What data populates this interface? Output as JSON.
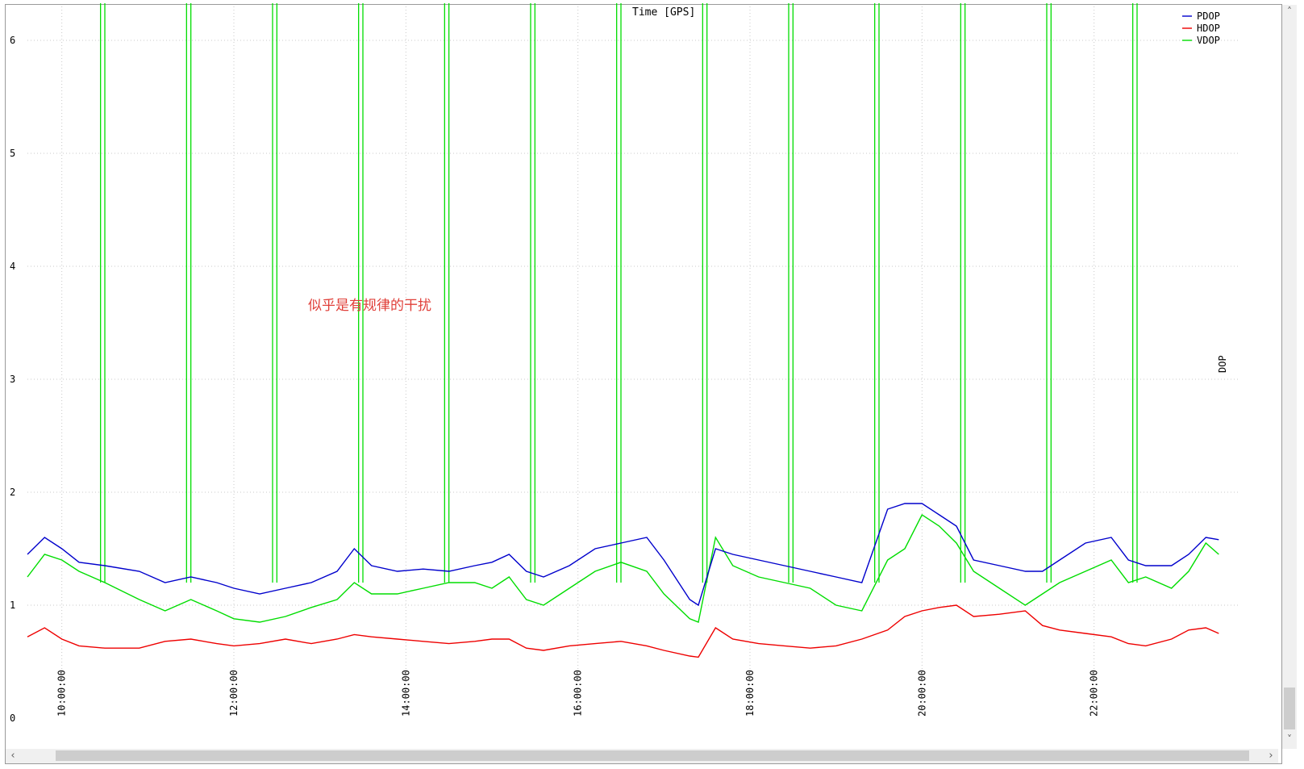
{
  "chart_data": {
    "type": "line",
    "title": "Time [GPS]",
    "ylabel": "DOP",
    "xlabel": "",
    "ylim": [
      0,
      6.3
    ],
    "xlim": [
      9.6,
      23.7
    ],
    "y_ticks": [
      "0",
      "1",
      "2",
      "3",
      "4",
      "5",
      "6"
    ],
    "x_ticks": [
      "10:00:00",
      "12:00:00",
      "14:00:00",
      "16:00:00",
      "18:00:00",
      "20:00:00",
      "22:00:00"
    ],
    "grid": true,
    "legend_position": "top-right",
    "annotation": "似乎是有规律的干扰",
    "series": [
      {
        "name": "PDOP",
        "color": "#0000cc",
        "x": [
          9.6,
          9.8,
          10.0,
          10.2,
          10.5,
          10.9,
          11.2,
          11.5,
          11.8,
          12.0,
          12.3,
          12.6,
          12.9,
          13.2,
          13.4,
          13.6,
          13.9,
          14.2,
          14.5,
          14.8,
          15.0,
          15.2,
          15.4,
          15.6,
          15.9,
          16.2,
          16.5,
          16.8,
          17.0,
          17.3,
          17.4,
          17.6,
          17.8,
          18.1,
          18.4,
          18.7,
          19.0,
          19.3,
          19.6,
          19.8,
          20.0,
          20.2,
          20.4,
          20.6,
          20.9,
          21.2,
          21.4,
          21.6,
          21.9,
          22.2,
          22.4,
          22.6,
          22.9,
          23.1,
          23.3,
          23.45
        ],
        "values": [
          1.45,
          1.6,
          1.5,
          1.38,
          1.35,
          1.3,
          1.2,
          1.25,
          1.2,
          1.15,
          1.1,
          1.15,
          1.2,
          1.3,
          1.5,
          1.35,
          1.3,
          1.32,
          1.3,
          1.35,
          1.38,
          1.45,
          1.3,
          1.25,
          1.35,
          1.5,
          1.55,
          1.6,
          1.4,
          1.05,
          1.0,
          1.5,
          1.45,
          1.4,
          1.35,
          1.3,
          1.25,
          1.2,
          1.85,
          1.9,
          1.9,
          1.8,
          1.7,
          1.4,
          1.35,
          1.3,
          1.3,
          1.4,
          1.55,
          1.6,
          1.4,
          1.35,
          1.35,
          1.45,
          1.6,
          1.58
        ]
      },
      {
        "name": "HDOP",
        "color": "#ee0000",
        "x": [
          9.6,
          9.8,
          10.0,
          10.2,
          10.5,
          10.9,
          11.2,
          11.5,
          11.8,
          12.0,
          12.3,
          12.6,
          12.9,
          13.2,
          13.4,
          13.6,
          13.9,
          14.2,
          14.5,
          14.8,
          15.0,
          15.2,
          15.4,
          15.6,
          15.9,
          16.2,
          16.5,
          16.8,
          17.0,
          17.3,
          17.4,
          17.6,
          17.8,
          18.1,
          18.4,
          18.7,
          19.0,
          19.3,
          19.6,
          19.8,
          20.0,
          20.2,
          20.4,
          20.6,
          20.9,
          21.2,
          21.4,
          21.6,
          21.9,
          22.2,
          22.4,
          22.6,
          22.9,
          23.1,
          23.3,
          23.45
        ],
        "values": [
          0.72,
          0.8,
          0.7,
          0.64,
          0.62,
          0.62,
          0.68,
          0.7,
          0.66,
          0.64,
          0.66,
          0.7,
          0.66,
          0.7,
          0.74,
          0.72,
          0.7,
          0.68,
          0.66,
          0.68,
          0.7,
          0.7,
          0.62,
          0.6,
          0.64,
          0.66,
          0.68,
          0.64,
          0.6,
          0.55,
          0.54,
          0.8,
          0.7,
          0.66,
          0.64,
          0.62,
          0.64,
          0.7,
          0.78,
          0.9,
          0.95,
          0.98,
          1.0,
          0.9,
          0.92,
          0.95,
          0.82,
          0.78,
          0.75,
          0.72,
          0.66,
          0.64,
          0.7,
          0.78,
          0.8,
          0.75
        ]
      },
      {
        "name": "VDOP",
        "color": "#00dd00",
        "x": [
          9.6,
          9.8,
          10.0,
          10.2,
          10.5,
          10.9,
          11.2,
          11.5,
          11.8,
          12.0,
          12.3,
          12.6,
          12.9,
          13.2,
          13.4,
          13.6,
          13.9,
          14.2,
          14.5,
          14.8,
          15.0,
          15.2,
          15.4,
          15.6,
          15.9,
          16.2,
          16.5,
          16.8,
          17.0,
          17.3,
          17.4,
          17.6,
          17.8,
          18.1,
          18.4,
          18.7,
          19.0,
          19.3,
          19.6,
          19.8,
          20.0,
          20.2,
          20.4,
          20.6,
          20.9,
          21.2,
          21.4,
          21.6,
          21.9,
          22.2,
          22.4,
          22.6,
          22.9,
          23.1,
          23.3,
          23.45
        ],
        "values": [
          1.25,
          1.45,
          1.4,
          1.3,
          1.2,
          1.05,
          0.95,
          1.05,
          0.95,
          0.88,
          0.85,
          0.9,
          0.98,
          1.05,
          1.2,
          1.1,
          1.1,
          1.15,
          1.2,
          1.2,
          1.15,
          1.25,
          1.05,
          1.0,
          1.15,
          1.3,
          1.38,
          1.3,
          1.1,
          0.88,
          0.85,
          1.6,
          1.35,
          1.25,
          1.2,
          1.15,
          1.0,
          0.95,
          1.4,
          1.5,
          1.8,
          1.7,
          1.55,
          1.3,
          1.15,
          1.0,
          1.1,
          1.2,
          1.3,
          1.4,
          1.2,
          1.25,
          1.15,
          1.3,
          1.55,
          1.45
        ]
      }
    ],
    "vdop_spikes_x": [
      10.45,
      10.5,
      11.45,
      11.5,
      12.45,
      12.5,
      13.45,
      13.5,
      14.45,
      14.5,
      15.45,
      15.5,
      16.45,
      16.5,
      17.45,
      17.5,
      18.45,
      18.5,
      19.45,
      19.5,
      20.45,
      20.5,
      21.45,
      21.5,
      22.45,
      22.5
    ]
  }
}
